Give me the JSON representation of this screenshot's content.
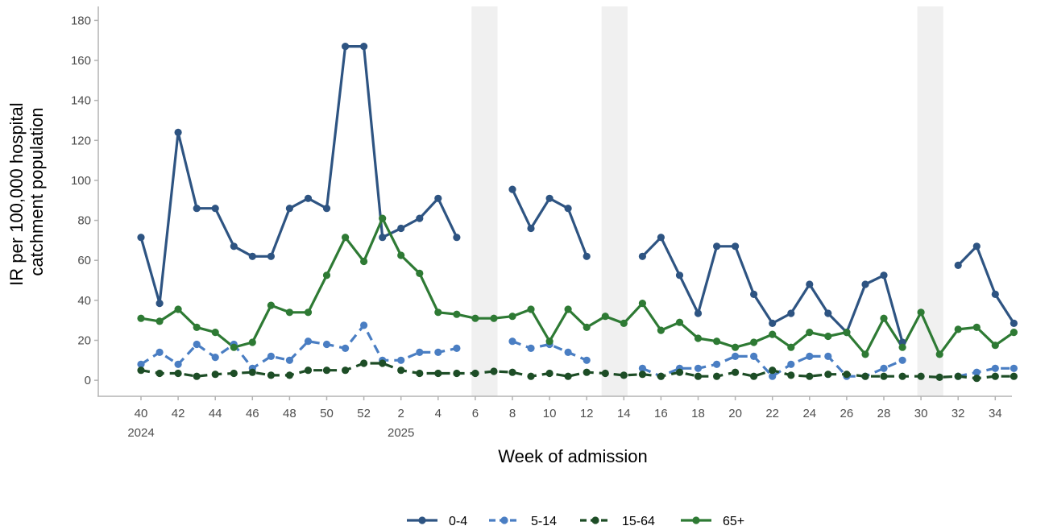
{
  "chart_data": {
    "type": "line",
    "xlabel": "Week of admission",
    "ylabel": "IR per 100,000 hospital catchment population",
    "ylabel_lines": [
      "IR per 100,000 hospital",
      "catchment population"
    ],
    "ylim": [
      -8,
      187
    ],
    "y_ticks": [
      0,
      20,
      40,
      60,
      80,
      100,
      120,
      140,
      160,
      180
    ],
    "grid": false,
    "legend_position": "bottom",
    "weeks": [
      40,
      41,
      42,
      43,
      44,
      45,
      46,
      47,
      48,
      49,
      50,
      51,
      52,
      1,
      2,
      3,
      4,
      5,
      6,
      7,
      8,
      9,
      10,
      11,
      12,
      13,
      14,
      15,
      16,
      17,
      18,
      19,
      20,
      21,
      22,
      23,
      24,
      25,
      26,
      27,
      28,
      29,
      30,
      31,
      32,
      33,
      34,
      35
    ],
    "x_tick_weeks": [
      40,
      42,
      44,
      46,
      48,
      50,
      52,
      2,
      4,
      6,
      8,
      10,
      12,
      14,
      16,
      18,
      20,
      22,
      24,
      26,
      28,
      30,
      32,
      34
    ],
    "year_labels": [
      {
        "week": 40,
        "label": "2024"
      },
      {
        "week": 2,
        "label": "2025"
      }
    ],
    "shaded_week_ranges": [
      [
        6,
        7
      ],
      [
        13,
        14
      ],
      [
        30,
        31
      ]
    ],
    "series": [
      {
        "name": "0-4",
        "color": "#2e5482",
        "dash": "solid",
        "values": [
          71.5,
          38.5,
          124,
          86,
          86,
          67,
          62,
          62,
          86,
          91,
          86,
          167,
          167,
          71.5,
          76,
          81,
          91,
          71.5,
          null,
          null,
          95.5,
          76,
          91,
          86,
          62,
          null,
          null,
          62,
          71.5,
          52.5,
          33.5,
          67,
          67,
          43,
          28.5,
          33.5,
          48,
          33.5,
          24,
          48,
          52.5,
          19,
          null,
          null,
          57.5,
          67,
          43,
          28.5
        ]
      },
      {
        "name": "5-14",
        "color": "#4a7ec3",
        "dash": "dashed",
        "values": [
          8,
          14,
          8,
          18,
          11.5,
          18,
          6,
          12,
          10,
          19.5,
          18,
          16,
          27.5,
          10,
          10,
          14,
          14,
          16,
          null,
          null,
          19.5,
          16,
          18,
          14,
          10,
          null,
          null,
          6,
          2,
          6,
          6,
          8,
          12,
          12,
          2,
          8,
          12,
          12,
          2,
          2,
          6,
          10,
          null,
          null,
          2,
          4,
          6,
          6
        ]
      },
      {
        "name": "15-64",
        "color": "#1d4d26",
        "dash": "dashed",
        "values": [
          5,
          3.5,
          3.5,
          2,
          3,
          3.5,
          4,
          2.5,
          2.5,
          5,
          5,
          5,
          8.5,
          8.5,
          5,
          3.5,
          3.5,
          3.5,
          3.5,
          4.5,
          4,
          2,
          3.5,
          2,
          4,
          3.5,
          2.5,
          3,
          2,
          4,
          2,
          2,
          4,
          2,
          5,
          2.5,
          2,
          3,
          3,
          2,
          2,
          2,
          2,
          1.5,
          2,
          1,
          2,
          2
        ]
      },
      {
        "name": "65+",
        "color": "#2e7a34",
        "dash": "solid",
        "values": [
          31,
          29.5,
          35.5,
          26.5,
          24,
          16.5,
          19,
          37.5,
          34,
          34,
          52.5,
          71.5,
          59.5,
          81,
          62.5,
          53.5,
          34,
          33,
          31,
          31,
          32,
          35.5,
          19.5,
          35.5,
          26.5,
          32,
          28.5,
          38.5,
          25,
          29,
          21,
          19.5,
          16.5,
          19,
          23,
          16.5,
          24,
          22,
          24,
          13,
          31,
          16.5,
          34,
          13,
          25.5,
          26.5,
          17.5,
          24
        ]
      }
    ]
  }
}
